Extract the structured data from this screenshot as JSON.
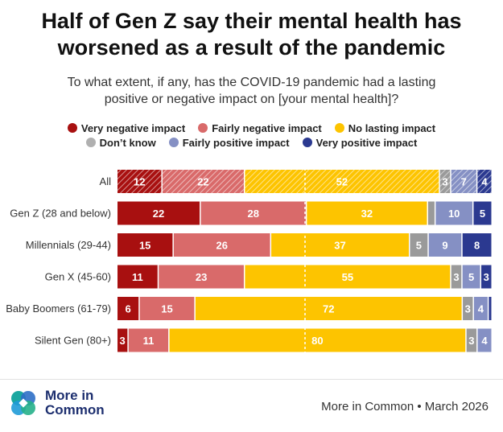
{
  "title_line1": "Half of Gen Z say their mental health has",
  "title_line2": "worsened as a result of the pandemic",
  "subtitle_line1": "To what extent, if any, has the COVID-19 pandemic had a lasting",
  "subtitle_line2": "positive or negative impact on [your mental health]?",
  "colors": {
    "very_negative": "#a81010",
    "fairly_negative": "#d96a6a",
    "no_lasting": "#fdc400",
    "dont_know": "#9a9a9a",
    "fairly_positive": "#8590c4",
    "very_positive": "#2b3990"
  },
  "footer": {
    "logo_line1": "More in",
    "logo_line2": "Common",
    "source": "More in Common • March 2026"
  },
  "chart_data": {
    "type": "bar",
    "stacked": true,
    "orientation": "horizontal",
    "categories": [
      "All",
      "Gen Z (28 and below)",
      "Millennials (29-44)",
      "Gen X (45-60)",
      "Baby Boomers (61-79)",
      "Silent Gen (80+)"
    ],
    "series": [
      {
        "name": "Very negative impact",
        "color": "#a81010",
        "values": [
          12,
          22,
          15,
          11,
          6,
          3
        ]
      },
      {
        "name": "Fairly negative impact",
        "color": "#d96a6a",
        "values": [
          22,
          28,
          26,
          23,
          15,
          11
        ]
      },
      {
        "name": "No lasting impact",
        "color": "#fdc400",
        "values": [
          52,
          32,
          37,
          55,
          72,
          80
        ]
      },
      {
        "name": "Don’t know",
        "color": "#9a9a9a",
        "values": [
          3,
          2,
          5,
          3,
          3,
          3
        ]
      },
      {
        "name": "Fairly positive impact",
        "color": "#8590c4",
        "values": [
          7,
          10,
          9,
          5,
          4,
          4
        ]
      },
      {
        "name": "Very positive impact",
        "color": "#2b3990",
        "values": [
          4,
          5,
          8,
          3,
          1,
          0
        ]
      }
    ],
    "value_labels_hidden": [
      [
        false,
        false,
        false,
        false,
        false,
        false
      ],
      [
        false,
        false,
        false,
        true,
        false,
        false
      ],
      [
        false,
        false,
        false,
        false,
        false,
        false
      ],
      [
        false,
        false,
        false,
        false,
        false,
        false
      ],
      [
        false,
        false,
        false,
        false,
        false,
        true
      ],
      [
        false,
        false,
        false,
        false,
        false,
        true
      ]
    ],
    "hatched_category": "All",
    "legend_position": "top",
    "xlim": [
      0,
      100
    ]
  }
}
